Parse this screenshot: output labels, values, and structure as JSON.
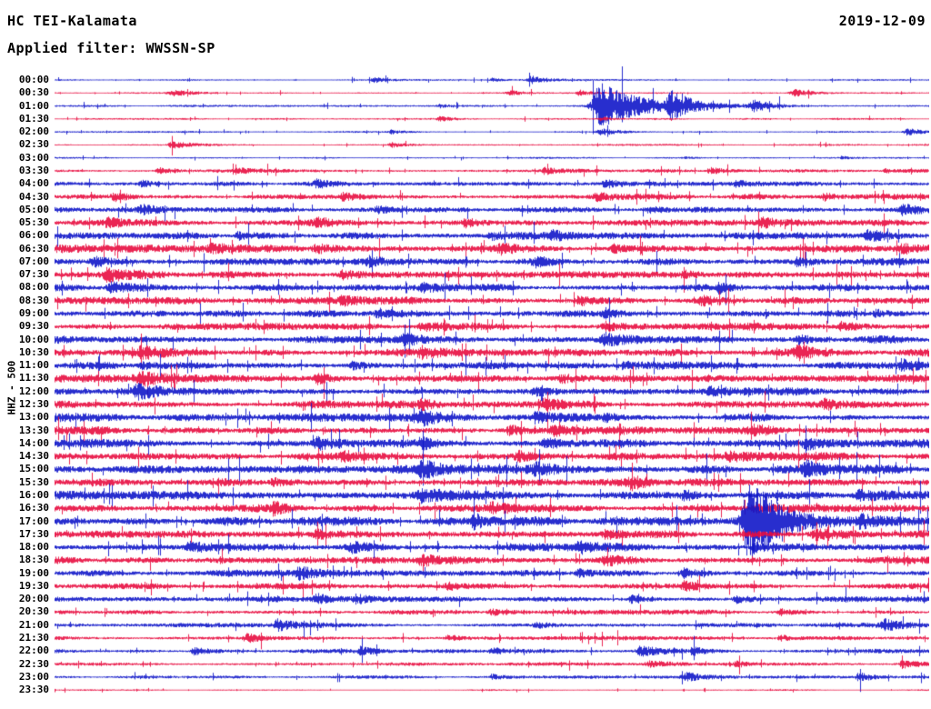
{
  "header": {
    "station": "HC TEI-Kalamata",
    "date": "2019-12-09",
    "filter_label": "Applied filter: WWSSN-SP"
  },
  "axis": {
    "channel_label": "HHZ - 500",
    "minutes_per_row": 30,
    "rows_per_day": 48
  },
  "chart_data": {
    "type": "line",
    "subtype": "helicorder-seismogram",
    "title": "HC TEI-Kalamata helicorder",
    "date": "2019-12-09",
    "filter": "WWSSN-SP",
    "channel": "HHZ - 500",
    "x_range_minutes": [
      0,
      30
    ],
    "amplitude_units": "arbitrary (pixels, clipped)",
    "colors": {
      "blue": "#1016c8",
      "red": "#e80c40"
    },
    "annotations": [
      "large event ~01:19 UTC with coda into 01:30 row",
      "aftershock ~02:18 UTC",
      "largest clipped event ~17:24 UTC overlapping adjacent rows",
      "elevated microseismic noise 05:30-19:30"
    ],
    "rows": [
      {
        "label": "00:00",
        "color": "blue",
        "base": 0.7,
        "events": [
          [
            0.365,
            3,
            0.006
          ],
          [
            0.5,
            2,
            0.005
          ],
          [
            0.545,
            4,
            0.008
          ]
        ]
      },
      {
        "label": "00:30",
        "color": "red",
        "base": 0.7,
        "events": [
          [
            0.135,
            3,
            0.012
          ],
          [
            0.52,
            2.5,
            0.008
          ],
          [
            0.6,
            3,
            0.006
          ],
          [
            0.845,
            4,
            0.01
          ]
        ]
      },
      {
        "label": "01:00",
        "color": "blue",
        "base": 0.9,
        "events": [
          [
            0.44,
            2,
            0.005
          ],
          [
            0.625,
            26,
            0.02
          ],
          [
            0.705,
            13,
            0.012
          ],
          [
            0.8,
            5,
            0.01
          ]
        ]
      },
      {
        "label": "01:30",
        "color": "red",
        "base": 0.8,
        "events": [
          [
            0.44,
            2.5,
            0.006
          ],
          [
            0.625,
            2,
            0.006
          ]
        ]
      },
      {
        "label": "02:00",
        "color": "blue",
        "base": 0.8,
        "events": [
          [
            0.385,
            2,
            0.005
          ],
          [
            0.625,
            4,
            0.01
          ],
          [
            0.975,
            4,
            0.008
          ]
        ]
      },
      {
        "label": "02:30",
        "color": "red",
        "base": 0.8,
        "events": [
          [
            0.135,
            3.5,
            0.01
          ],
          [
            0.385,
            2.5,
            0.007
          ]
        ]
      },
      {
        "label": "03:00",
        "color": "blue",
        "base": 0.8,
        "events": [
          [
            0.72,
            1.5,
            0.005
          ],
          [
            0.9,
            1.5,
            0.004
          ]
        ]
      },
      {
        "label": "03:30",
        "color": "red",
        "base": 1.6,
        "events": [
          [
            0.12,
            3,
            0.008
          ],
          [
            0.21,
            2.5,
            0.006
          ],
          [
            0.56,
            3,
            0.007
          ],
          [
            0.75,
            3.5,
            0.009
          ],
          [
            0.95,
            2.5,
            0.006
          ]
        ]
      },
      {
        "label": "04:00",
        "color": "blue",
        "base": 2.0,
        "events": [
          [
            0.1,
            3,
            0.007
          ],
          [
            0.3,
            3.5,
            0.008
          ],
          [
            0.63,
            4,
            0.008
          ],
          [
            0.78,
            3,
            0.007
          ]
        ]
      },
      {
        "label": "04:30",
        "color": "red",
        "base": 2.4,
        "events": [
          [
            0.07,
            4,
            0.009
          ],
          [
            0.33,
            3.5,
            0.008
          ],
          [
            0.62,
            3.5,
            0.008
          ],
          [
            0.88,
            3.5,
            0.008
          ]
        ]
      },
      {
        "label": "05:00",
        "color": "blue",
        "base": 2.4,
        "events": [
          [
            0.1,
            4,
            0.008
          ],
          [
            0.37,
            3.5,
            0.008
          ],
          [
            0.68,
            3.5,
            0.008
          ],
          [
            0.97,
            5,
            0.008
          ]
        ]
      },
      {
        "label": "05:30",
        "color": "red",
        "base": 2.8,
        "events": [
          [
            0.06,
            4,
            0.008
          ],
          [
            0.3,
            3.5,
            0.008
          ],
          [
            0.47,
            4,
            0.009
          ],
          [
            0.81,
            3.5,
            0.008
          ]
        ]
      },
      {
        "label": "06:00",
        "color": "blue",
        "base": 3.0,
        "events": [
          [
            0.21,
            4,
            0.008
          ],
          [
            0.5,
            4,
            0.009
          ],
          [
            0.57,
            3.5,
            0.008
          ],
          [
            0.93,
            5,
            0.009
          ]
        ]
      },
      {
        "label": "06:30",
        "color": "red",
        "base": 3.2,
        "events": [
          [
            0.18,
            4,
            0.009
          ],
          [
            0.3,
            4.5,
            0.01
          ],
          [
            0.51,
            4.5,
            0.009
          ],
          [
            0.64,
            4,
            0.008
          ],
          [
            0.97,
            4,
            0.008
          ]
        ]
      },
      {
        "label": "07:00",
        "color": "blue",
        "base": 3.2,
        "events": [
          [
            0.045,
            5,
            0.009
          ],
          [
            0.36,
            4,
            0.008
          ],
          [
            0.55,
            4.5,
            0.009
          ],
          [
            0.85,
            4,
            0.008
          ]
        ]
      },
      {
        "label": "07:30",
        "color": "red",
        "base": 3.0,
        "events": [
          [
            0.06,
            6,
            0.012
          ],
          [
            0.33,
            4,
            0.008
          ],
          [
            0.72,
            4,
            0.008
          ]
        ]
      },
      {
        "label": "08:00",
        "color": "blue",
        "base": 3.0,
        "events": [
          [
            0.065,
            5,
            0.01
          ],
          [
            0.42,
            4,
            0.008
          ],
          [
            0.76,
            4,
            0.008
          ]
        ]
      },
      {
        "label": "08:30",
        "color": "red",
        "base": 3.2,
        "events": [
          [
            0.33,
            4,
            0.008
          ],
          [
            0.6,
            5,
            0.009
          ],
          [
            0.74,
            4,
            0.008
          ]
        ]
      },
      {
        "label": "09:00",
        "color": "blue",
        "base": 3.2,
        "events": [
          [
            0.37,
            4,
            0.008
          ],
          [
            0.63,
            4.5,
            0.009
          ],
          [
            0.94,
            4,
            0.008
          ]
        ]
      },
      {
        "label": "09:30",
        "color": "red",
        "base": 3.2,
        "events": [
          [
            0.42,
            4,
            0.008
          ],
          [
            0.63,
            4,
            0.008
          ],
          [
            0.9,
            5,
            0.009
          ]
        ]
      },
      {
        "label": "10:00",
        "color": "blue",
        "base": 3.4,
        "events": [
          [
            0.4,
            4,
            0.008
          ],
          [
            0.63,
            6,
            0.01
          ],
          [
            0.85,
            4.5,
            0.008
          ]
        ]
      },
      {
        "label": "10:30",
        "color": "red",
        "base": 3.4,
        "events": [
          [
            0.1,
            4.5,
            0.009
          ],
          [
            0.42,
            4,
            0.008
          ],
          [
            0.85,
            5,
            0.009
          ]
        ]
      },
      {
        "label": "11:00",
        "color": "blue",
        "base": 3.4,
        "events": [
          [
            0.1,
            4,
            0.008
          ],
          [
            0.34,
            4,
            0.008
          ],
          [
            0.65,
            4,
            0.008
          ],
          [
            0.97,
            4.5,
            0.008
          ]
        ]
      },
      {
        "label": "11:30",
        "color": "red",
        "base": 3.4,
        "events": [
          [
            0.1,
            5,
            0.009
          ],
          [
            0.3,
            4.5,
            0.008
          ],
          [
            0.58,
            4,
            0.008
          ]
        ]
      },
      {
        "label": "12:00",
        "color": "blue",
        "base": 3.4,
        "events": [
          [
            0.095,
            5.5,
            0.01
          ],
          [
            0.55,
            4,
            0.008
          ],
          [
            0.75,
            4,
            0.008
          ]
        ]
      },
      {
        "label": "12:30",
        "color": "red",
        "base": 3.2,
        "events": [
          [
            0.42,
            4,
            0.008
          ],
          [
            0.56,
            4.5,
            0.009
          ],
          [
            0.88,
            4,
            0.008
          ]
        ]
      },
      {
        "label": "13:00",
        "color": "blue",
        "base": 3.6,
        "events": [
          [
            0.42,
            7,
            0.01
          ],
          [
            0.55,
            5,
            0.009
          ],
          [
            0.63,
            4.5,
            0.008
          ]
        ]
      },
      {
        "label": "13:30",
        "color": "red",
        "base": 3.6,
        "events": [
          [
            0.52,
            5,
            0.009
          ],
          [
            0.57,
            4.5,
            0.008
          ],
          [
            0.8,
            4,
            0.008
          ]
        ]
      },
      {
        "label": "14:00",
        "color": "blue",
        "base": 3.8,
        "events": [
          [
            0.3,
            6,
            0.009
          ],
          [
            0.42,
            5,
            0.009
          ],
          [
            0.56,
            5,
            0.009
          ],
          [
            0.86,
            4.5,
            0.008
          ]
        ]
      },
      {
        "label": "14:30",
        "color": "red",
        "base": 3.4,
        "events": [
          [
            0.33,
            4,
            0.008
          ],
          [
            0.53,
            4.5,
            0.008
          ],
          [
            0.77,
            4,
            0.008
          ]
        ]
      },
      {
        "label": "15:00",
        "color": "blue",
        "base": 3.8,
        "events": [
          [
            0.42,
            8,
            0.01
          ],
          [
            0.55,
            5,
            0.008
          ],
          [
            0.86,
            6,
            0.009
          ]
        ]
      },
      {
        "label": "15:30",
        "color": "red",
        "base": 3.4,
        "events": [
          [
            0.25,
            4,
            0.008
          ],
          [
            0.66,
            5,
            0.009
          ]
        ]
      },
      {
        "label": "16:00",
        "color": "blue",
        "base": 3.8,
        "events": [
          [
            0.42,
            5.5,
            0.009
          ],
          [
            0.72,
            4.5,
            0.008
          ],
          [
            0.92,
            4.5,
            0.008
          ]
        ]
      },
      {
        "label": "16:30",
        "color": "red",
        "base": 3.4,
        "events": [
          [
            0.25,
            4.5,
            0.008
          ],
          [
            0.5,
            4,
            0.008
          ],
          [
            0.8,
            4,
            0.008
          ]
        ]
      },
      {
        "label": "17:00",
        "color": "blue",
        "base": 3.8,
        "events": [
          [
            0.48,
            7,
            0.01
          ],
          [
            0.795,
            44,
            0.016
          ],
          [
            0.92,
            5,
            0.008
          ]
        ]
      },
      {
        "label": "17:30",
        "color": "red",
        "base": 3.4,
        "events": [
          [
            0.3,
            4,
            0.008
          ],
          [
            0.63,
            4.5,
            0.008
          ],
          [
            0.87,
            5,
            0.009
          ]
        ]
      },
      {
        "label": "18:00",
        "color": "blue",
        "base": 3.4,
        "events": [
          [
            0.155,
            6,
            0.009
          ],
          [
            0.34,
            4.5,
            0.008
          ],
          [
            0.6,
            4.5,
            0.008
          ],
          [
            0.8,
            4.5,
            0.008
          ]
        ]
      },
      {
        "label": "18:30",
        "color": "red",
        "base": 3.0,
        "events": [
          [
            0.42,
            4.5,
            0.008
          ],
          [
            0.63,
            4.5,
            0.008
          ]
        ]
      },
      {
        "label": "19:00",
        "color": "blue",
        "base": 3.0,
        "events": [
          [
            0.28,
            5,
            0.008
          ],
          [
            0.6,
            4,
            0.008
          ],
          [
            0.72,
            5.5,
            0.009
          ]
        ]
      },
      {
        "label": "19:30",
        "color": "red",
        "base": 2.6,
        "events": [
          [
            0.45,
            3.5,
            0.007
          ],
          [
            0.72,
            4,
            0.008
          ]
        ]
      },
      {
        "label": "20:00",
        "color": "blue",
        "base": 2.4,
        "events": [
          [
            0.3,
            4.5,
            0.008
          ],
          [
            0.345,
            4,
            0.007
          ],
          [
            0.66,
            4,
            0.008
          ],
          [
            0.78,
            4,
            0.008
          ]
        ]
      },
      {
        "label": "20:30",
        "color": "red",
        "base": 2.0,
        "events": [
          [
            0.5,
            3.5,
            0.008
          ],
          [
            0.83,
            3,
            0.007
          ]
        ]
      },
      {
        "label": "21:00",
        "color": "blue",
        "base": 2.0,
        "events": [
          [
            0.255,
            5.5,
            0.009
          ],
          [
            0.55,
            3,
            0.007
          ],
          [
            0.95,
            5,
            0.009
          ]
        ]
      },
      {
        "label": "21:30",
        "color": "red",
        "base": 1.8,
        "events": [
          [
            0.22,
            4.5,
            0.009
          ],
          [
            0.45,
            3,
            0.007
          ],
          [
            0.83,
            3,
            0.007
          ]
        ]
      },
      {
        "label": "22:00",
        "color": "blue",
        "base": 1.8,
        "events": [
          [
            0.16,
            4.5,
            0.008
          ],
          [
            0.35,
            3.5,
            0.007
          ],
          [
            0.5,
            3.5,
            0.007
          ],
          [
            0.67,
            5,
            0.009
          ],
          [
            0.73,
            4,
            0.007
          ]
        ]
      },
      {
        "label": "22:30",
        "color": "red",
        "base": 1.5,
        "events": [
          [
            0.68,
            3.5,
            0.008
          ],
          [
            0.78,
            3,
            0.007
          ],
          [
            0.97,
            4,
            0.008
          ]
        ]
      },
      {
        "label": "23:00",
        "color": "blue",
        "base": 1.4,
        "events": [
          [
            0.5,
            3,
            0.006
          ],
          [
            0.72,
            5,
            0.009
          ],
          [
            0.92,
            4.5,
            0.008
          ]
        ]
      },
      {
        "label": "23:30",
        "color": "red",
        "base": 0.7,
        "events": []
      }
    ]
  }
}
